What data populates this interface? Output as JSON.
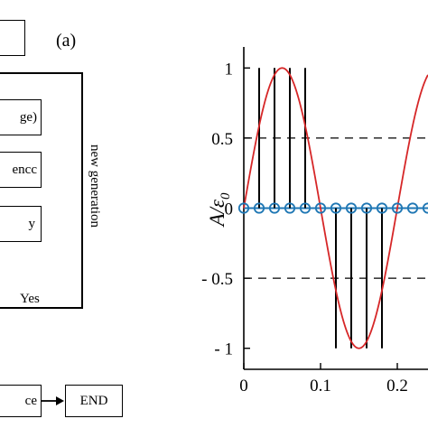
{
  "flowchart": {
    "panel_label": "(a)",
    "steps": [
      {
        "id": "top",
        "label": ""
      },
      {
        "id": "step1",
        "label": "ge)"
      },
      {
        "id": "step2",
        "label": "encc"
      },
      {
        "id": "step3",
        "label": "y"
      }
    ],
    "loop_label": "new generation",
    "yes_label": "Yes",
    "bottom_left_label": "ce",
    "end_label": "END"
  },
  "chart_data": {
    "type": "line",
    "title": "",
    "xlabel": "",
    "ylabel": "A/ε",
    "ylabel_subscript": "0",
    "xlim": [
      0,
      0.24
    ],
    "ylim": [
      -1.15,
      1.15
    ],
    "x_ticks": [
      0,
      0.1,
      0.2
    ],
    "x_tick_labels": [
      "0",
      "0.1",
      "0.2"
    ],
    "y_ticks": [
      1,
      0.5,
      0,
      -0.5,
      -1
    ],
    "y_tick_labels": [
      "1",
      "0.5",
      "0",
      "- 0.5",
      "- 1"
    ],
    "dashed_reference_lines": [
      0.5,
      -0.5
    ],
    "colors": {
      "curve": "#d62728",
      "baseline": "#1f77b4",
      "markers": "#1f77b4",
      "stems": "#000000",
      "dashes": "#000000"
    },
    "series": [
      {
        "kind": "curve",
        "function": "sin(2*pi*x/0.2)",
        "x": [
          0,
          0.01,
          0.02,
          0.03,
          0.04,
          0.05,
          0.06,
          0.07,
          0.08,
          0.09,
          0.1,
          0.11,
          0.12,
          0.13,
          0.14,
          0.15,
          0.16,
          0.17,
          0.18,
          0.19,
          0.2,
          0.21,
          0.22,
          0.23,
          0.24
        ],
        "y": [
          0,
          0.309,
          0.588,
          0.809,
          0.951,
          1,
          0.951,
          0.809,
          0.588,
          0.309,
          0,
          -0.309,
          -0.588,
          -0.809,
          -0.951,
          -1,
          -0.951,
          -0.809,
          -0.588,
          -0.309,
          0,
          0.309,
          0.588,
          0.809,
          0.951
        ]
      },
      {
        "kind": "markers",
        "x": [
          0,
          0.02,
          0.04,
          0.06,
          0.08,
          0.1,
          0.12,
          0.14,
          0.16,
          0.18,
          0.2,
          0.22,
          0.24
        ],
        "y": [
          0,
          0,
          0,
          0,
          0,
          0,
          0,
          0,
          0,
          0,
          0,
          0,
          0
        ]
      },
      {
        "kind": "stems",
        "x": [
          0.02,
          0.04,
          0.06,
          0.08,
          0.12,
          0.14,
          0.16,
          0.18
        ],
        "y": [
          1,
          1,
          1,
          1,
          -1,
          -1,
          -1,
          -1
        ]
      }
    ]
  }
}
